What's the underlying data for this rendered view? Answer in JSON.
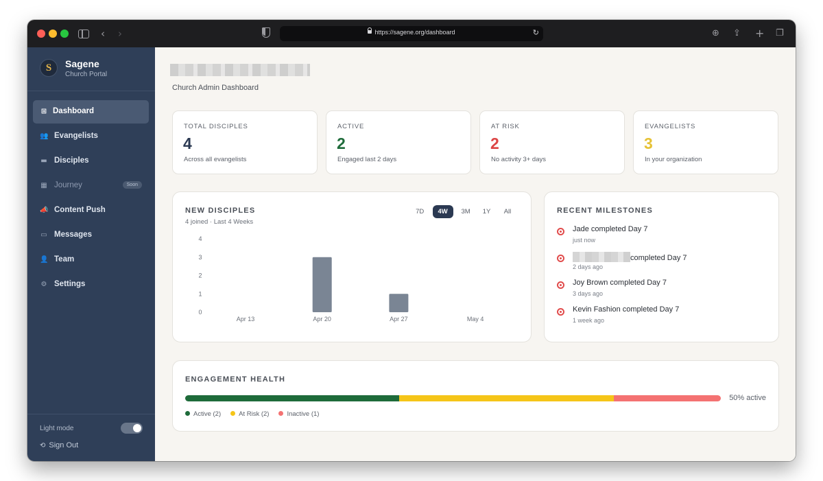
{
  "browser": {
    "url": "https://sagene.org/dashboard"
  },
  "sidebar": {
    "brand_initial": "S",
    "brand_name": "Sagene",
    "brand_subtitle": "Church Portal",
    "items": [
      {
        "label": "Dashboard",
        "icon": "grid-icon",
        "active": true
      },
      {
        "label": "Evangelists",
        "icon": "people-icon"
      },
      {
        "label": "Disciples",
        "icon": "book-icon"
      },
      {
        "label": "Journey",
        "icon": "map-icon",
        "badge": "Soon",
        "disabled": true
      },
      {
        "label": "Content Push",
        "icon": "megaphone-icon"
      },
      {
        "label": "Messages",
        "icon": "message-icon"
      },
      {
        "label": "Team",
        "icon": "person-icon"
      },
      {
        "label": "Settings",
        "icon": "gear-icon"
      }
    ],
    "light_mode_label": "Light mode",
    "light_mode_on": true,
    "sign_out_label": "Sign Out"
  },
  "header": {
    "subtitle": "Church Admin Dashboard"
  },
  "stats": [
    {
      "label": "TOTAL DISCIPLES",
      "value": "4",
      "note": "Across all evangelists",
      "color": "#2b3952"
    },
    {
      "label": "ACTIVE",
      "value": "2",
      "note": "Engaged last 2 days",
      "color": "#1e6b3a"
    },
    {
      "label": "AT RISK",
      "value": "2",
      "note": "No activity 3+ days",
      "color": "#dc4545"
    },
    {
      "label": "EVANGELISTS",
      "value": "3",
      "note": "In your organization",
      "color": "#e6c236"
    }
  ],
  "new_disciples": {
    "title": "NEW DISCIPLES",
    "subtitle": "4 joined · Last 4 Weeks",
    "ranges": [
      "7D",
      "4W",
      "3M",
      "1Y",
      "All"
    ],
    "active_range": "4W"
  },
  "chart_data": {
    "type": "bar",
    "categories": [
      "Apr 13",
      "Apr 20",
      "Apr 27",
      "May 4"
    ],
    "values": [
      0,
      3,
      1,
      0
    ],
    "ylim": [
      0,
      4
    ],
    "yticks": [
      "0",
      "1",
      "2",
      "3",
      "4"
    ],
    "bar_color": "#7a8594",
    "grid": false
  },
  "milestones": {
    "title": "RECENT MILESTONES",
    "items": [
      {
        "name": "Jade",
        "text": "completed Day 7",
        "time": "just now"
      },
      {
        "name": "",
        "redacted": true,
        "text": "completed Day 7",
        "time": "2 days ago"
      },
      {
        "name": "Joy Brown",
        "text": "completed Day 7",
        "time": "3 days ago"
      },
      {
        "name": "Kevin Fashion",
        "text": "completed Day 7",
        "time": "1 week ago"
      }
    ]
  },
  "engagement": {
    "title": "ENGAGEMENT HEALTH",
    "percent_label": "50% active",
    "segments": [
      {
        "label": "Active (2)",
        "share": 0.4,
        "color": "#1e6b3a"
      },
      {
        "label": "At Risk (2)",
        "share": 0.4,
        "color": "#f5c518"
      },
      {
        "label": "Inactive (1)",
        "share": 0.2,
        "color": "#f47272"
      }
    ]
  }
}
